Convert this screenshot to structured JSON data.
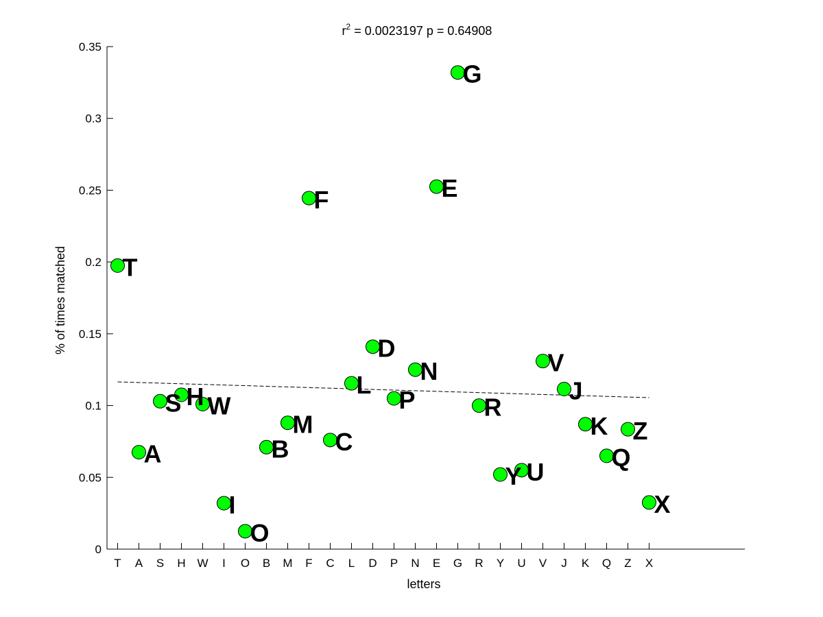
{
  "chart_data": {
    "type": "scatter",
    "title_prefix": "r",
    "title_superscript": "2",
    "title_rest": " = 0.0023197 p = 0.64908",
    "xlabel": "letters",
    "ylabel": "% of times matched",
    "categories": [
      "T",
      "A",
      "S",
      "H",
      "W",
      "I",
      "O",
      "B",
      "M",
      "F",
      "C",
      "L",
      "D",
      "P",
      "N",
      "E",
      "G",
      "R",
      "Y",
      "U",
      "V",
      "J",
      "K",
      "Q",
      "Z",
      "X"
    ],
    "values": [
      0.1975,
      0.0675,
      0.103,
      0.1075,
      0.101,
      0.032,
      0.0125,
      0.071,
      0.088,
      0.2445,
      0.076,
      0.1155,
      0.141,
      0.105,
      0.125,
      0.2525,
      0.332,
      0.1,
      0.052,
      0.055,
      0.131,
      0.1115,
      0.087,
      0.065,
      0.0835,
      0.0325
    ],
    "point_labels": [
      "T",
      "A",
      "S",
      "H",
      "W",
      "I",
      "O",
      "B",
      "M",
      "F",
      "C",
      "L",
      "D",
      "P",
      "N",
      "E",
      "G",
      "R",
      "Y",
      "U",
      "V",
      "J",
      "K",
      "Q",
      "Z",
      "X"
    ],
    "ylim": [
      0,
      0.35
    ],
    "xlim": [
      0.5,
      30.5
    ],
    "yticks": [
      0,
      0.05,
      0.1,
      0.15,
      0.2,
      0.25,
      0.3,
      0.35
    ],
    "ytick_labels": [
      "0",
      "0.05",
      "0.1",
      "0.15",
      "0.2",
      "0.25",
      "0.3",
      "0.35"
    ],
    "trendline": {
      "x": [
        1,
        26
      ],
      "y": [
        0.1165,
        0.1055
      ]
    },
    "grid": false,
    "colors": {
      "marker_fill": "#00ff00",
      "marker_edge": "#000000",
      "trendline": "#000000"
    }
  }
}
